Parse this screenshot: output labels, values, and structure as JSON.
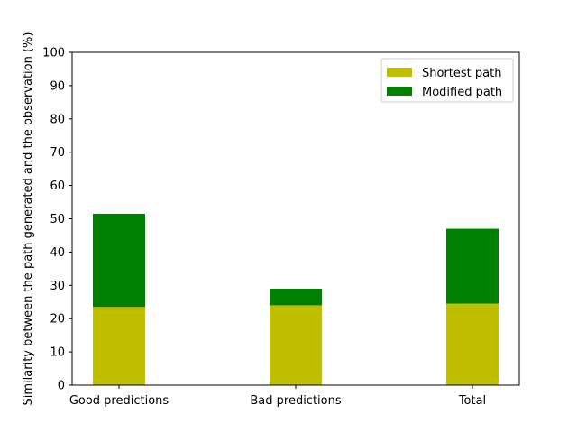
{
  "chart_data": {
    "type": "bar",
    "stacked": true,
    "categories": [
      "Good predictions",
      "Bad predictions",
      "Total"
    ],
    "series": [
      {
        "name": "Shortest path",
        "values": [
          23.5,
          24.0,
          24.5
        ],
        "color": "#bfbf00"
      },
      {
        "name": "Modified path",
        "values": [
          28.0,
          5.0,
          22.5
        ],
        "color": "#008000"
      }
    ],
    "ylabel": "Similarity between the path generated and the observation (%)",
    "xlabel": "",
    "ylim": [
      0,
      100
    ],
    "yticks": [
      0,
      10,
      20,
      30,
      40,
      50,
      60,
      70,
      80,
      90,
      100
    ],
    "grid": false,
    "legend_position": "top-right"
  }
}
